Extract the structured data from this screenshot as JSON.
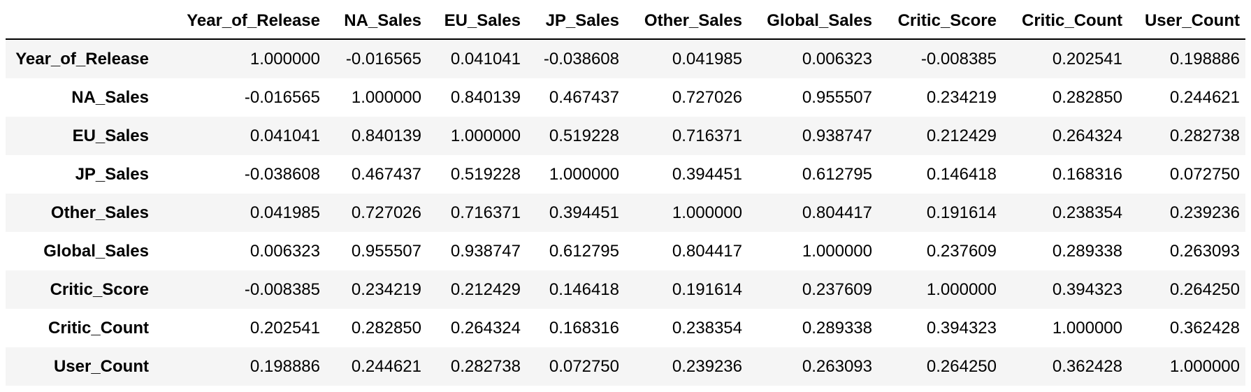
{
  "table": {
    "index_header": "",
    "columns": [
      "Year_of_Release",
      "NA_Sales",
      "EU_Sales",
      "JP_Sales",
      "Other_Sales",
      "Global_Sales",
      "Critic_Score",
      "Critic_Count",
      "User_Count"
    ],
    "rows": [
      {
        "label": "Year_of_Release",
        "cells": [
          "1.000000",
          "-0.016565",
          "0.041041",
          "-0.038608",
          "0.041985",
          "0.006323",
          "-0.008385",
          "0.202541",
          "0.198886"
        ]
      },
      {
        "label": "NA_Sales",
        "cells": [
          "-0.016565",
          "1.000000",
          "0.840139",
          "0.467437",
          "0.727026",
          "0.955507",
          "0.234219",
          "0.282850",
          "0.244621"
        ]
      },
      {
        "label": "EU_Sales",
        "cells": [
          "0.041041",
          "0.840139",
          "1.000000",
          "0.519228",
          "0.716371",
          "0.938747",
          "0.212429",
          "0.264324",
          "0.282738"
        ]
      },
      {
        "label": "JP_Sales",
        "cells": [
          "-0.038608",
          "0.467437",
          "0.519228",
          "1.000000",
          "0.394451",
          "0.612795",
          "0.146418",
          "0.168316",
          "0.072750"
        ]
      },
      {
        "label": "Other_Sales",
        "cells": [
          "0.041985",
          "0.727026",
          "0.716371",
          "0.394451",
          "1.000000",
          "0.804417",
          "0.191614",
          "0.238354",
          "0.239236"
        ]
      },
      {
        "label": "Global_Sales",
        "cells": [
          "0.006323",
          "0.955507",
          "0.938747",
          "0.612795",
          "0.804417",
          "1.000000",
          "0.237609",
          "0.289338",
          "0.263093"
        ]
      },
      {
        "label": "Critic_Score",
        "cells": [
          "-0.008385",
          "0.234219",
          "0.212429",
          "0.146418",
          "0.191614",
          "0.237609",
          "1.000000",
          "0.394323",
          "0.264250"
        ]
      },
      {
        "label": "Critic_Count",
        "cells": [
          "0.202541",
          "0.282850",
          "0.264324",
          "0.168316",
          "0.238354",
          "0.289338",
          "0.394323",
          "1.000000",
          "0.362428"
        ]
      },
      {
        "label": "User_Count",
        "cells": [
          "0.198886",
          "0.244621",
          "0.282738",
          "0.072750",
          "0.239236",
          "0.263093",
          "0.264250",
          "0.362428",
          "1.000000"
        ]
      }
    ]
  }
}
